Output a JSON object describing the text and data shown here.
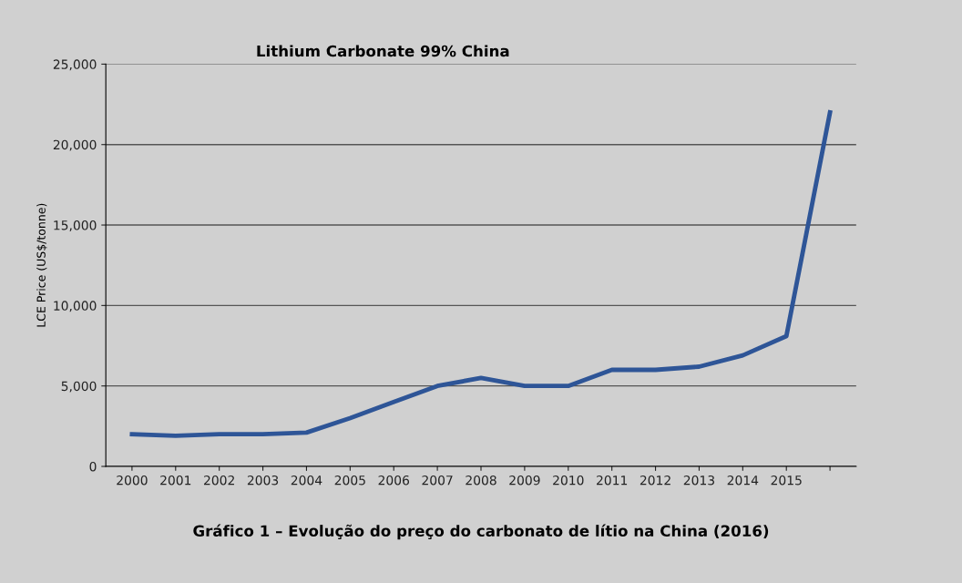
{
  "chart_data": {
    "type": "line",
    "title": "Lithium Carbonate 99% China",
    "ylabel": "LCE Price (US$/tonne)",
    "categories": [
      "2000",
      "2001",
      "2002",
      "2003",
      "2004",
      "2005",
      "2006",
      "2007",
      "2008",
      "2009",
      "2010",
      "2011",
      "2012",
      "2013",
      "2014",
      "2015",
      null
    ],
    "series": [
      {
        "color": "#2e5597",
        "values": [
          2000,
          1900,
          2000,
          2000,
          2100,
          3000,
          4000,
          5000,
          5500,
          5000,
          5000,
          6000,
          6000,
          6200,
          6900,
          8100,
          22000
        ]
      }
    ],
    "ylim": [
      0,
      25000
    ],
    "yticks": [
      {
        "value": 0,
        "label": "0"
      },
      {
        "value": 5000,
        "label": "5,000"
      },
      {
        "value": 10000,
        "label": "10,000"
      },
      {
        "value": 15000,
        "label": "15,000"
      },
      {
        "value": 20000,
        "label": "20,000"
      },
      {
        "value": 25000,
        "label": "25,000"
      }
    ],
    "grid": "y",
    "legend": false,
    "marker": "none",
    "line_style": "solid",
    "annotations": [
      "Gráfico 1 – Evolução do preço do carbonato de lítio na China (2016)"
    ]
  }
}
